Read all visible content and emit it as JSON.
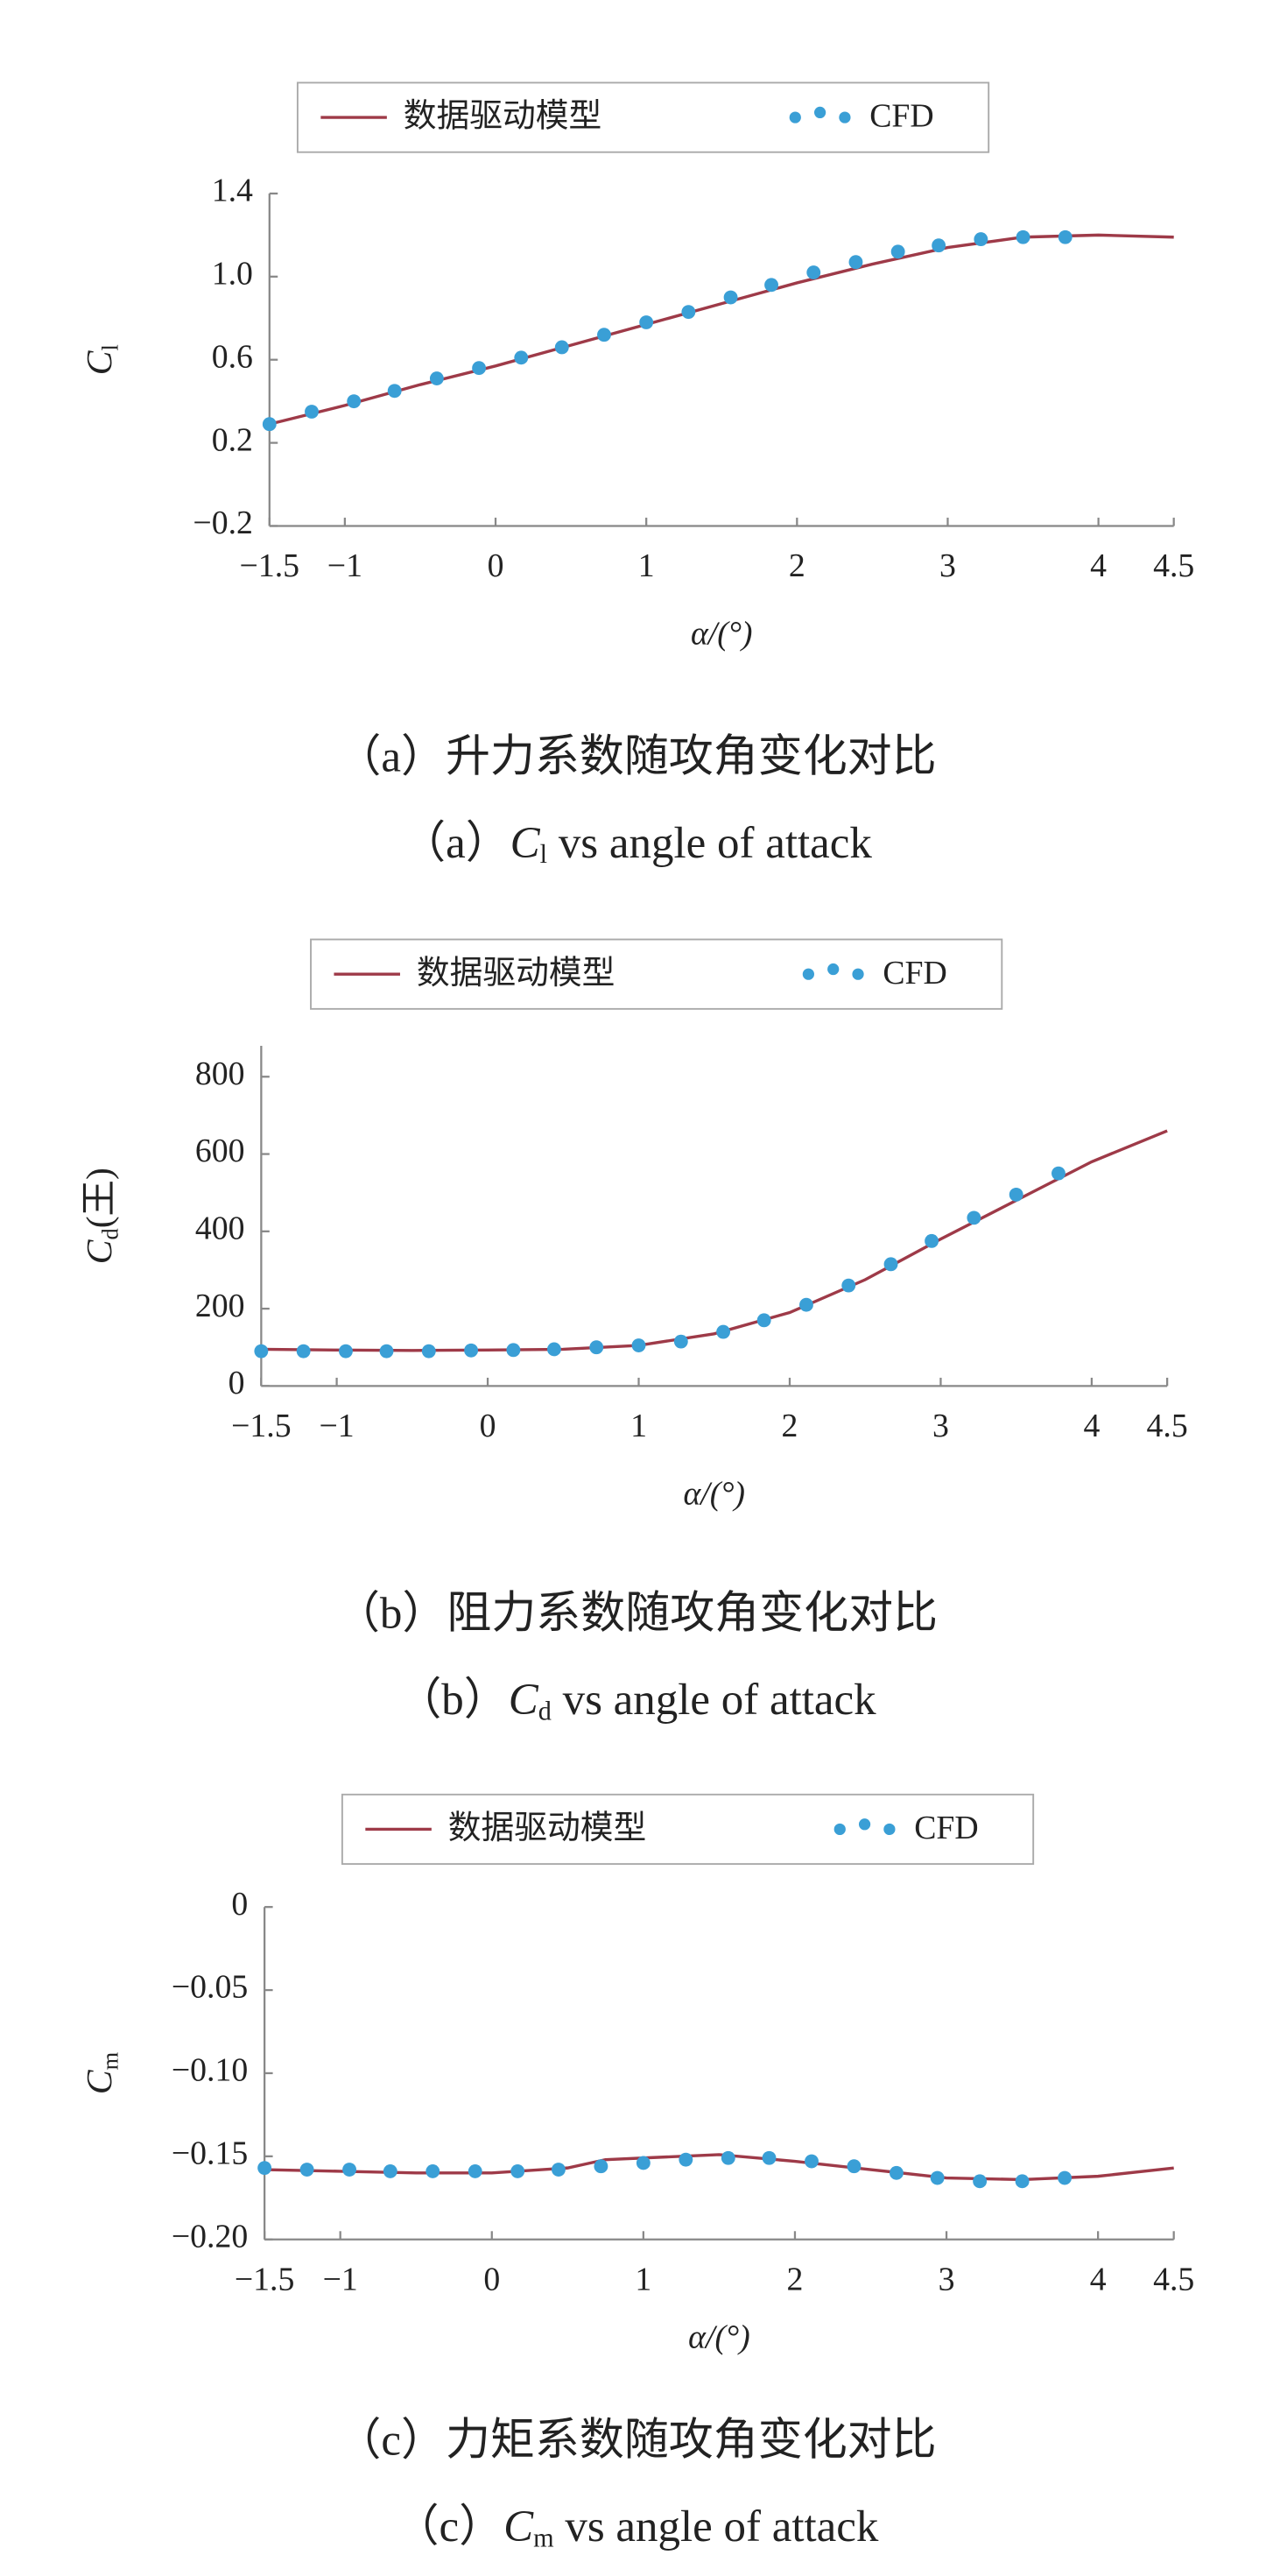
{
  "chart_data": [
    {
      "type": "line",
      "xlabel": "α/(°)",
      "ylabel": {
        "symbol": "C",
        "subscript": "l"
      },
      "caption_cn": "（a）升力系数随攻角变化对比",
      "caption_en": {
        "prefix": "（a）",
        "symbol": "C",
        "subscript": "l",
        "text": " vs angle of attack"
      },
      "xlim": [
        -1.5,
        4.5
      ],
      "xticks": [
        {
          "value": -1.5,
          "label": "−1.5"
        },
        {
          "value": -1,
          "label": "−1"
        },
        0,
        1,
        2,
        3,
        4,
        4.5
      ],
      "ylim": [
        -0.2,
        1.4
      ],
      "yticks": [
        {
          "value": -0.2,
          "label": "−0.2"
        },
        0.2,
        0.6,
        {
          "value": 1,
          "label": "1.0"
        },
        1.4
      ],
      "series": [
        {
          "name": "数据驱动模型",
          "color": "#9e3a48",
          "mode": "line",
          "x": [
            -1.5,
            -1,
            -0.5,
            0,
            0.5,
            1,
            1.5,
            2,
            2.5,
            3,
            3.5,
            4,
            4.5
          ],
          "values": [
            0.29,
            0.38,
            0.48,
            0.57,
            0.67,
            0.77,
            0.87,
            0.97,
            1.06,
            1.14,
            1.19,
            1.2,
            1.19
          ]
        },
        {
          "name": "CFD",
          "color": "#3a9fd6",
          "mode": "markers",
          "x": [
            -1.5,
            -1.22,
            -0.94,
            -0.67,
            -0.39,
            -0.11,
            0.17,
            0.44,
            0.72,
            1.0,
            1.28,
            1.56,
            1.83,
            2.11,
            2.39,
            2.67,
            2.94,
            3.22,
            3.5,
            3.78
          ],
          "values": [
            0.29,
            0.35,
            0.4,
            0.45,
            0.51,
            0.56,
            0.61,
            0.66,
            0.72,
            0.78,
            0.83,
            0.9,
            0.96,
            1.02,
            1.07,
            1.12,
            1.15,
            1.18,
            1.19,
            1.19
          ]
        }
      ]
    },
    {
      "type": "line",
      "xlabel": "α/(°)",
      "ylabel": {
        "symbol": "C",
        "subscript": "d",
        "text": "(王)"
      },
      "caption_cn": "（b）阻力系数随攻角变化对比",
      "caption_en": {
        "prefix": "（b）",
        "symbol": "C",
        "subscript": "d",
        "text": " vs angle of attack"
      },
      "xlim": [
        -1.5,
        4.5
      ],
      "xticks": [
        {
          "value": -1.5,
          "label": "−1.5"
        },
        {
          "value": -1,
          "label": "−1"
        },
        0,
        1,
        2,
        3,
        4,
        4.5
      ],
      "ylim": [
        0,
        880
      ],
      "yticks": [
        0,
        200,
        400,
        600,
        800
      ],
      "series": [
        {
          "name": "数据驱动模型",
          "color": "#9e3a48",
          "mode": "line",
          "x": [
            -1.5,
            -1,
            -0.5,
            0,
            0.5,
            1,
            1.5,
            2,
            2.5,
            3,
            3.5,
            4,
            4.5
          ],
          "values": [
            95,
            93,
            92,
            93,
            95,
            105,
            135,
            190,
            275,
            380,
            480,
            580,
            660
          ]
        },
        {
          "name": "CFD",
          "color": "#3a9fd6",
          "mode": "markers",
          "x": [
            -1.5,
            -1.22,
            -0.94,
            -0.67,
            -0.39,
            -0.11,
            0.17,
            0.44,
            0.72,
            1.0,
            1.28,
            1.56,
            1.83,
            2.11,
            2.39,
            2.67,
            2.94,
            3.22,
            3.5,
            3.78
          ],
          "values": [
            90,
            90,
            90,
            90,
            90,
            92,
            93,
            95,
            100,
            105,
            115,
            140,
            170,
            210,
            260,
            315,
            375,
            435,
            495,
            550
          ]
        }
      ]
    },
    {
      "type": "line",
      "xlabel": "α/(°)",
      "ylabel": {
        "symbol": "C",
        "subscript": "m"
      },
      "caption_cn": "（c）力矩系数随攻角变化对比",
      "caption_en": {
        "prefix": "（c）",
        "symbol": "C",
        "subscript": "m",
        "text": " vs angle of attack"
      },
      "xlim": [
        -1.5,
        4.5
      ],
      "xticks": [
        {
          "value": -1.5,
          "label": "−1.5"
        },
        {
          "value": -1,
          "label": "−1"
        },
        0,
        1,
        2,
        3,
        4,
        4.5
      ],
      "ylim": [
        -0.2,
        0
      ],
      "yticks": [
        {
          "value": -0.2,
          "label": "−0.20"
        },
        {
          "value": -0.15,
          "label": "−0.15"
        },
        {
          "value": -0.1,
          "label": "−0.10"
        },
        {
          "value": -0.05,
          "label": "−0.05"
        },
        0
      ],
      "series": [
        {
          "name": "数据驱动模型",
          "color": "#9e3a48",
          "mode": "line",
          "x": [
            -1.5,
            -1,
            -0.5,
            0,
            0.5,
            0.75,
            1,
            1.5,
            2,
            2.5,
            3,
            3.5,
            4,
            4.5
          ],
          "values": [
            -0.158,
            -0.159,
            -0.16,
            -0.16,
            -0.157,
            -0.152,
            -0.151,
            -0.149,
            -0.153,
            -0.158,
            -0.163,
            -0.164,
            -0.162,
            -0.157
          ]
        },
        {
          "name": "CFD",
          "color": "#3a9fd6",
          "mode": "markers",
          "x": [
            -1.5,
            -1.22,
            -0.94,
            -0.67,
            -0.39,
            -0.11,
            0.17,
            0.44,
            0.72,
            1.0,
            1.28,
            1.56,
            1.83,
            2.11,
            2.39,
            2.67,
            2.94,
            3.22,
            3.5,
            3.78
          ],
          "values": [
            -0.157,
            -0.158,
            -0.158,
            -0.159,
            -0.159,
            -0.159,
            -0.159,
            -0.158,
            -0.156,
            -0.154,
            -0.152,
            -0.151,
            -0.151,
            -0.153,
            -0.156,
            -0.16,
            -0.163,
            -0.165,
            -0.165,
            -0.163
          ]
        }
      ]
    }
  ]
}
